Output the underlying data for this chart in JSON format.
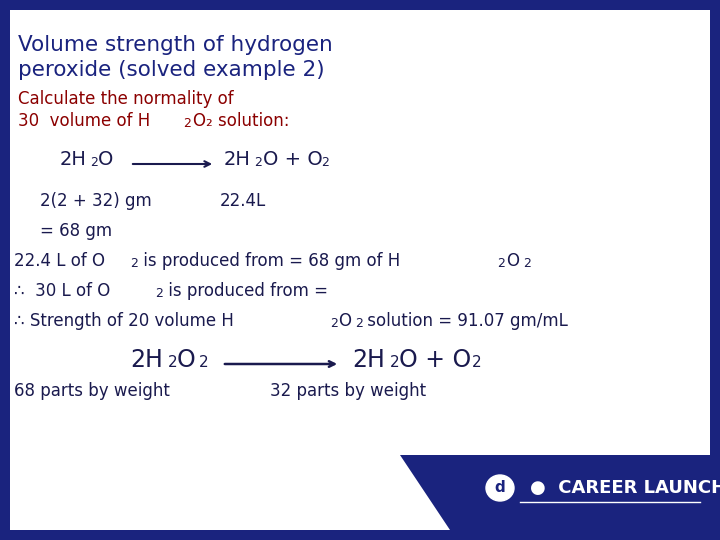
{
  "title_line1": "Volume strength of hydrogen",
  "title_line2": "peroxide (solved example 2)",
  "title_color": "#1a237e",
  "subtitle_color": "#8b0000",
  "body_color": "#1a1a4e",
  "bg_color": "#ffffff",
  "border_color": "#1a237e",
  "footer_bg": "#1a237e",
  "footer_text": "CAREER LAUNCHER",
  "slide_bg": "#1a237e"
}
